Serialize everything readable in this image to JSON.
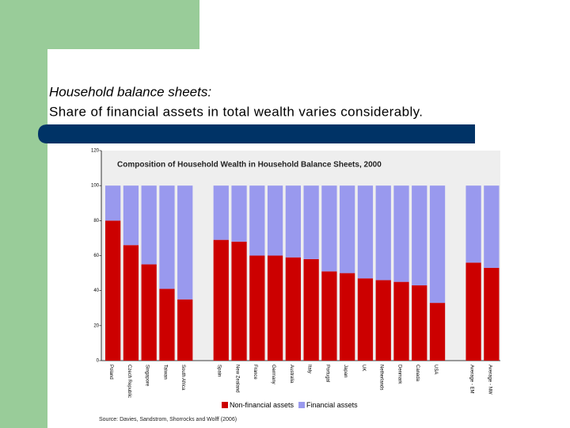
{
  "slide": {
    "title_line1": "Household balance sheets:",
    "title_line2": "Share of financial assets in total wealth varies considerably."
  },
  "chart_data": {
    "type": "stacked_bar",
    "title": "Composition of Household Wealth in Household Balance Sheets, 2000",
    "categories": [
      "Poland",
      "Czech Republic",
      "Singapore",
      "Taiwan",
      "South Africa",
      null,
      "Spain",
      "New Zealand",
      "France",
      "Germany",
      "Australia",
      "Italy",
      "Portugal",
      "Japan",
      "UK",
      "Netherlands",
      "Denmark",
      "Canada",
      "USA",
      null,
      "Average - EM",
      "Average - NW"
    ],
    "series": [
      {
        "name": "Non-financial assets",
        "color": "#cc0000",
        "values": [
          80,
          66,
          55,
          41,
          35,
          null,
          69,
          68,
          60,
          60,
          59,
          58,
          51,
          50,
          47,
          46,
          45,
          43,
          33,
          null,
          56,
          53
        ]
      },
      {
        "name": "Financial assets",
        "color": "#9999ee",
        "values": [
          20,
          34,
          45,
          59,
          65,
          null,
          31,
          32,
          40,
          40,
          41,
          42,
          49,
          50,
          53,
          54,
          55,
          57,
          67,
          null,
          44,
          47
        ]
      }
    ],
    "ylim": [
      0,
      120
    ],
    "yticks": [
      0,
      20,
      40,
      60,
      80,
      100,
      120
    ],
    "source": "Source: Davies, Sandstrom, Shorrocks and Wolff (2006)"
  }
}
